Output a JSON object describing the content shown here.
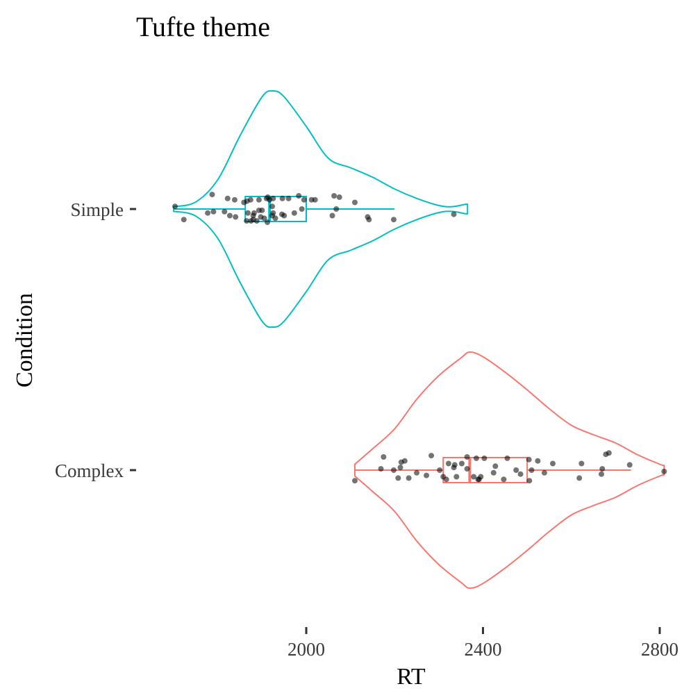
{
  "chart_data": {
    "type": "violin",
    "title": "Tufte theme",
    "xlabel": "RT",
    "ylabel": "Condition",
    "xlim": [
      1700,
      2820
    ],
    "x_ticks": [
      2000,
      2400,
      2800
    ],
    "grid": false,
    "legend": "none",
    "categories": [
      "Simple",
      "Complex"
    ],
    "series": [
      {
        "category": "Simple",
        "color": "#00BFC4",
        "density": [
          [
            1700,
            0.02
          ],
          [
            1750,
            0.06
          ],
          [
            1800,
            0.25
          ],
          [
            1850,
            0.62
          ],
          [
            1900,
            0.95
          ],
          [
            1925,
            1.0
          ],
          [
            1950,
            0.95
          ],
          [
            2000,
            0.7
          ],
          [
            2050,
            0.43
          ],
          [
            2100,
            0.35
          ],
          [
            2150,
            0.27
          ],
          [
            2200,
            0.17
          ],
          [
            2250,
            0.09
          ],
          [
            2300,
            0.03
          ],
          [
            2330,
            0.02
          ],
          [
            2360,
            0.04
          ],
          [
            2365,
            0.04
          ]
        ],
        "box": {
          "min": 1700,
          "q1": 1862,
          "median": 1917,
          "q3": 2000,
          "max": 2200
        },
        "points": [
          [
            1703,
            0.02
          ],
          [
            1723,
            -0.08
          ],
          [
            1787,
            0.11
          ],
          [
            1777,
            -0.03
          ],
          [
            1790,
            -0.02
          ],
          [
            1822,
            0.08
          ],
          [
            1838,
            0.07
          ],
          [
            1859,
            0.05
          ],
          [
            1866,
            0.06
          ],
          [
            1874,
            0.07
          ],
          [
            1893,
            0.07
          ],
          [
            1910,
            0.08
          ],
          [
            1913,
            0.09
          ],
          [
            1917,
            0.07
          ],
          [
            1925,
            0.08
          ],
          [
            1946,
            0.08
          ],
          [
            1960,
            0.08
          ],
          [
            1983,
            0.1
          ],
          [
            1995,
            0.07
          ],
          [
            2012,
            0.07
          ],
          [
            2020,
            0.07
          ],
          [
            2063,
            0.1
          ],
          [
            2075,
            0.09
          ],
          [
            2110,
            0.05
          ],
          [
            2139,
            -0.06
          ],
          [
            2142,
            -0.08
          ],
          [
            2198,
            -0.08
          ],
          [
            2334,
            -0.04
          ],
          [
            1923,
            0.02
          ],
          [
            1925,
            -0.03
          ],
          [
            1945,
            -0.04
          ],
          [
            1973,
            -0.03
          ],
          [
            1923,
            -0.05
          ],
          [
            1950,
            -0.05
          ],
          [
            1868,
            -0.03
          ],
          [
            1882,
            -0.03
          ],
          [
            1893,
            -0.01
          ],
          [
            1897,
            -0.06
          ],
          [
            1900,
            -0.01
          ],
          [
            1880,
            -0.05
          ],
          [
            1815,
            -0.02
          ],
          [
            1827,
            -0.05
          ],
          [
            1840,
            -0.06
          ],
          [
            1865,
            -0.09
          ],
          [
            1875,
            -0.09
          ],
          [
            1880,
            -0.08
          ],
          [
            1888,
            -0.09
          ],
          [
            1905,
            -0.07
          ],
          [
            1912,
            -0.1
          ],
          [
            1930,
            -0.07
          ],
          [
            1990,
            0.0
          ],
          [
            2068,
            0.0
          ],
          [
            2059,
            -0.05
          ]
        ]
      },
      {
        "category": "Complex",
        "color": "#F8766D",
        "density": [
          [
            2110,
            0.05
          ],
          [
            2150,
            0.18
          ],
          [
            2200,
            0.35
          ],
          [
            2250,
            0.6
          ],
          [
            2300,
            0.8
          ],
          [
            2350,
            0.95
          ],
          [
            2370,
            1.0
          ],
          [
            2400,
            0.96
          ],
          [
            2450,
            0.83
          ],
          [
            2500,
            0.68
          ],
          [
            2550,
            0.52
          ],
          [
            2600,
            0.38
          ],
          [
            2650,
            0.3
          ],
          [
            2700,
            0.23
          ],
          [
            2750,
            0.13
          ],
          [
            2800,
            0.05
          ],
          [
            2810,
            0.04
          ]
        ],
        "box": {
          "min": 2110,
          "q1": 2310,
          "median": 2370,
          "q3": 2500,
          "max": 2735
        },
        "points": [
          [
            2110,
            -0.08
          ],
          [
            2169,
            0.01
          ],
          [
            2175,
            0.1
          ],
          [
            2198,
            0.0
          ],
          [
            2208,
            -0.06
          ],
          [
            2213,
            0.02
          ],
          [
            2215,
            0.06
          ],
          [
            2223,
            0.07
          ],
          [
            2232,
            -0.06
          ],
          [
            2250,
            -0.02
          ],
          [
            2272,
            -0.04
          ],
          [
            2283,
            0.11
          ],
          [
            2302,
            0.0
          ],
          [
            2310,
            -0.05
          ],
          [
            2317,
            -0.07
          ],
          [
            2322,
            0.05
          ],
          [
            2334,
            0.02
          ],
          [
            2336,
            0.04
          ],
          [
            2340,
            -0.05
          ],
          [
            2352,
            0.05
          ],
          [
            2364,
            0.01
          ],
          [
            2364,
            0.1
          ],
          [
            2379,
            -0.05
          ],
          [
            2385,
            0.09
          ],
          [
            2389,
            -0.07
          ],
          [
            2391,
            -0.07
          ],
          [
            2395,
            -0.05
          ],
          [
            2403,
            0.09
          ],
          [
            2424,
            -0.02
          ],
          [
            2428,
            0.03
          ],
          [
            2447,
            -0.07
          ],
          [
            2455,
            0.09
          ],
          [
            2475,
            0.0
          ],
          [
            2485,
            -0.03
          ],
          [
            2504,
            0.08
          ],
          [
            2505,
            -0.08
          ],
          [
            2510,
            0.0
          ],
          [
            2524,
            0.07
          ],
          [
            2539,
            -0.02
          ],
          [
            2558,
            0.05
          ],
          [
            2618,
            -0.06
          ],
          [
            2623,
            0.05
          ],
          [
            2668,
            -0.03
          ],
          [
            2670,
            0.01
          ],
          [
            2678,
            0.12
          ],
          [
            2685,
            0.13
          ],
          [
            2732,
            0.04
          ],
          [
            2810,
            -0.01
          ]
        ]
      }
    ]
  }
}
